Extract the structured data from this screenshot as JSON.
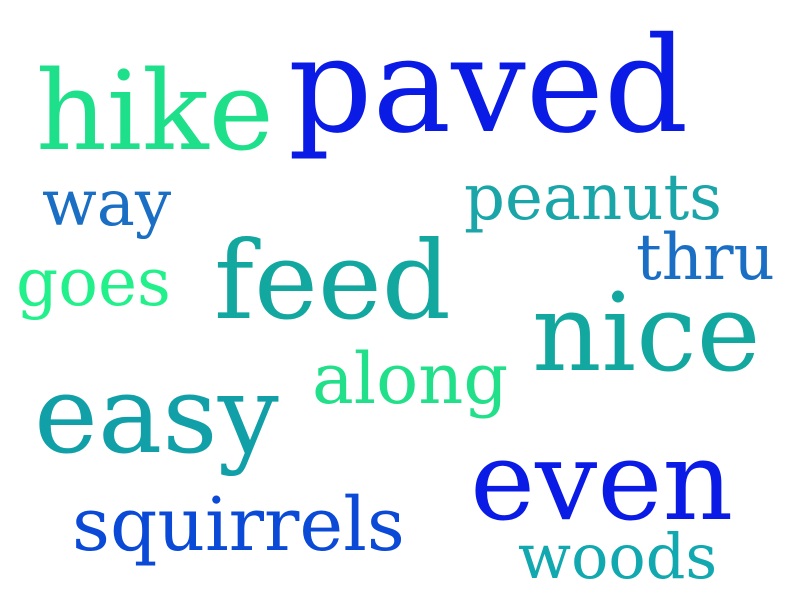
{
  "words": [
    {
      "text": "paved",
      "color": "#0a1be6"
    },
    {
      "text": "hike",
      "color": "#1ee08a"
    },
    {
      "text": "way",
      "color": "#1a6fc4"
    },
    {
      "text": "peanuts",
      "color": "#1aa5a8"
    },
    {
      "text": "thru",
      "color": "#1a6fc4"
    },
    {
      "text": "goes",
      "color": "#22f08a"
    },
    {
      "text": "feed",
      "color": "#12a8a0"
    },
    {
      "text": "nice",
      "color": "#12a8a0"
    },
    {
      "text": "along",
      "color": "#22e08a"
    },
    {
      "text": "easy",
      "color": "#12a0a8"
    },
    {
      "text": "even",
      "color": "#0a1be6"
    },
    {
      "text": "squirrels",
      "color": "#0a4ad6"
    },
    {
      "text": "woods",
      "color": "#12a8b0"
    }
  ]
}
